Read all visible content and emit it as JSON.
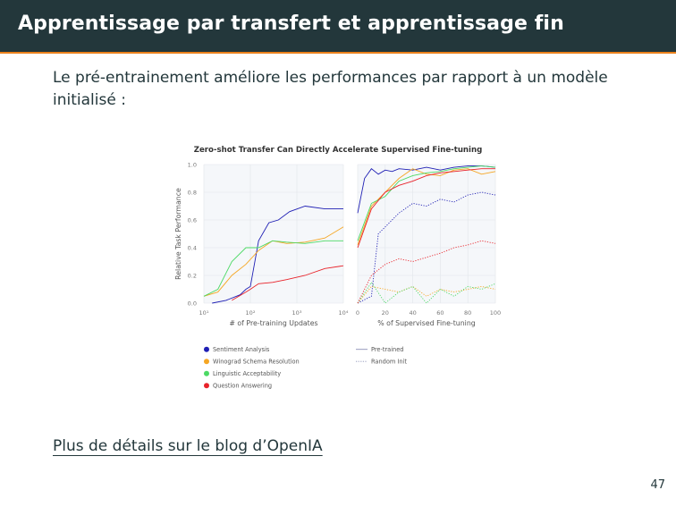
{
  "slide": {
    "title": "Apprentissage par transfert et apprentissage fin",
    "body": "Le pré-entrainement améliore les performances par rapport à un modèle initialisé :",
    "link": "Plus de détails sur le blog d’OpenIA",
    "page_number": "47"
  },
  "colors": {
    "title_bar": "#23373b",
    "accent": "#eb811b",
    "text": "#23373b"
  },
  "chart_data": [
    {
      "type": "line",
      "title": "Zero-shot Transfer Can Directly Accelerate Supervised Fine-tuning",
      "ylabel": "Relative Task Performance",
      "xlabel": "# of Pre-training Updates",
      "x_scale": "log",
      "x_ticks": [
        "10¹",
        "10²",
        "10³",
        "10⁴"
      ],
      "y_ticks": [
        "0.0",
        "0.2",
        "0.4",
        "0.6",
        "0.8",
        "1.0"
      ],
      "ylim": [
        0,
        1
      ],
      "grid": true,
      "series": [
        {
          "name": "Sentiment Analysis",
          "color": "#1f1fb4",
          "x": [
            15,
            30,
            60,
            80,
            100,
            150,
            250,
            400,
            700,
            1500,
            4000,
            10000
          ],
          "y": [
            0.0,
            0.02,
            0.06,
            0.1,
            0.12,
            0.45,
            0.58,
            0.6,
            0.66,
            0.7,
            0.68,
            0.68
          ]
        },
        {
          "name": "Winograd Schema Resolution",
          "color": "#f5a623",
          "x": [
            10,
            20,
            40,
            80,
            150,
            300,
            600,
            1500,
            4000,
            10000
          ],
          "y": [
            0.05,
            0.08,
            0.2,
            0.28,
            0.38,
            0.45,
            0.43,
            0.44,
            0.47,
            0.55
          ]
        },
        {
          "name": "Linguistic Acceptability",
          "color": "#4cd964",
          "x": [
            10,
            20,
            40,
            80,
            150,
            300,
            600,
            1500,
            4000,
            10000
          ],
          "y": [
            0.05,
            0.1,
            0.3,
            0.4,
            0.4,
            0.45,
            0.44,
            0.43,
            0.45,
            0.45
          ]
        },
        {
          "name": "Question Answering",
          "color": "#e8232a",
          "x": [
            40,
            80,
            100,
            150,
            300,
            600,
            1500,
            4000,
            10000
          ],
          "y": [
            0.02,
            0.08,
            0.1,
            0.14,
            0.15,
            0.17,
            0.2,
            0.25,
            0.27
          ]
        }
      ]
    },
    {
      "type": "line",
      "xlabel": "% of Supervised Fine-tuning",
      "x_ticks": [
        "0",
        "20",
        "40",
        "60",
        "80",
        "100"
      ],
      "xlim": [
        0,
        100
      ],
      "ylim": [
        0,
        1
      ],
      "grid": true,
      "legend": [
        {
          "label": "Pre-trained",
          "style": "solid"
        },
        {
          "label": "Random Init",
          "style": "dotted"
        }
      ],
      "series": [
        {
          "name": "Sentiment Analysis",
          "init": "Pre-trained",
          "color": "#1f1fb4",
          "x": [
            0,
            5,
            10,
            15,
            20,
            25,
            30,
            40,
            50,
            60,
            70,
            80,
            90,
            100
          ],
          "y": [
            0.65,
            0.9,
            0.97,
            0.93,
            0.96,
            0.95,
            0.97,
            0.96,
            0.98,
            0.96,
            0.98,
            0.99,
            0.99,
            0.98
          ]
        },
        {
          "name": "Winograd Schema Resolution",
          "init": "Pre-trained",
          "color": "#f5a623",
          "x": [
            0,
            10,
            20,
            30,
            40,
            50,
            60,
            70,
            80,
            90,
            100
          ],
          "y": [
            0.42,
            0.7,
            0.8,
            0.9,
            0.97,
            0.93,
            0.92,
            0.96,
            0.97,
            0.93,
            0.95
          ]
        },
        {
          "name": "Linguistic Acceptability",
          "init": "Pre-trained",
          "color": "#4cd964",
          "x": [
            0,
            10,
            20,
            30,
            40,
            50,
            60,
            70,
            80,
            90,
            100
          ],
          "y": [
            0.45,
            0.72,
            0.77,
            0.88,
            0.92,
            0.94,
            0.95,
            0.97,
            0.98,
            0.99,
            0.98
          ]
        },
        {
          "name": "Question Answering",
          "init": "Pre-trained",
          "color": "#e8232a",
          "x": [
            0,
            10,
            20,
            30,
            40,
            50,
            60,
            70,
            80,
            90,
            100
          ],
          "y": [
            0.4,
            0.68,
            0.8,
            0.85,
            0.88,
            0.92,
            0.94,
            0.95,
            0.96,
            0.97,
            0.97
          ]
        },
        {
          "name": "Sentiment Analysis",
          "init": "Random Init",
          "color": "#1f1fb4",
          "x": [
            0,
            10,
            15,
            20,
            30,
            40,
            50,
            60,
            70,
            80,
            90,
            100
          ],
          "y": [
            0.0,
            0.05,
            0.5,
            0.55,
            0.65,
            0.72,
            0.7,
            0.75,
            0.73,
            0.78,
            0.8,
            0.78
          ]
        },
        {
          "name": "Winograd Schema Resolution",
          "init": "Random Init",
          "color": "#f5a623",
          "x": [
            0,
            10,
            20,
            30,
            40,
            50,
            60,
            70,
            80,
            90,
            100
          ],
          "y": [
            0.0,
            0.12,
            0.1,
            0.08,
            0.12,
            0.05,
            0.1,
            0.08,
            0.1,
            0.12,
            0.1
          ]
        },
        {
          "name": "Linguistic Acceptability",
          "init": "Random Init",
          "color": "#4cd964",
          "x": [
            0,
            10,
            20,
            30,
            40,
            50,
            60,
            70,
            80,
            90,
            100
          ],
          "y": [
            0.0,
            0.15,
            0.0,
            0.08,
            0.12,
            0.0,
            0.1,
            0.05,
            0.12,
            0.1,
            0.14
          ]
        },
        {
          "name": "Question Answering",
          "init": "Random Init",
          "color": "#e8232a",
          "x": [
            0,
            10,
            20,
            30,
            40,
            50,
            60,
            70,
            80,
            90,
            100
          ],
          "y": [
            0.0,
            0.2,
            0.28,
            0.32,
            0.3,
            0.33,
            0.36,
            0.4,
            0.42,
            0.45,
            0.43
          ]
        }
      ]
    }
  ]
}
